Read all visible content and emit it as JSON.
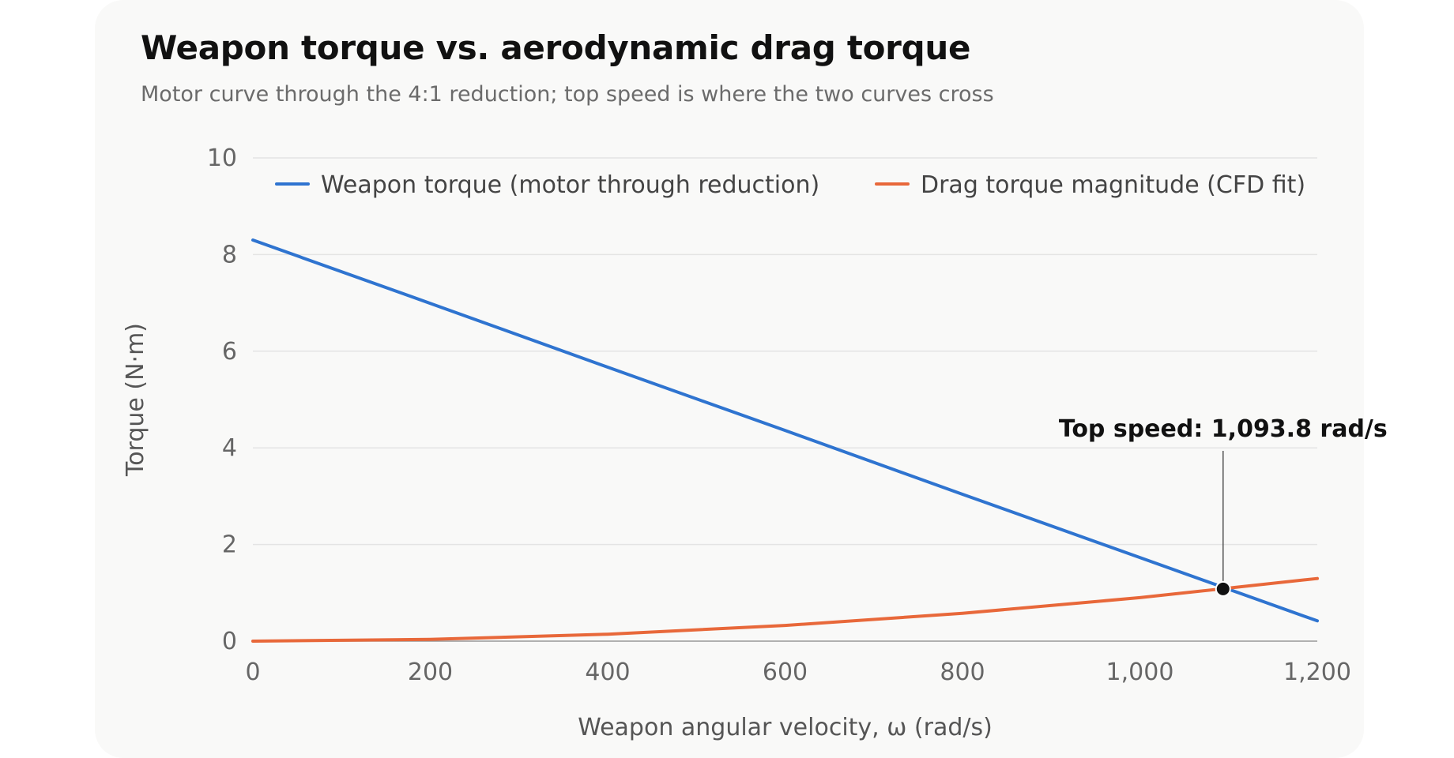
{
  "title": "Weapon torque vs. aerodynamic drag torque",
  "subtitle": "Motor curve through the 4:1 reduction; top speed is where the two curves cross",
  "colors": {
    "card_background": "#f9f9f8",
    "gridline": "#e4e4e4",
    "weapon_series": "#2f74d0",
    "drag_series": "#e8683a",
    "marker": "#111111"
  },
  "chart_data": {
    "type": "line",
    "xlabel": "Weapon angular velocity, ω (rad/s)",
    "ylabel": "Torque (N·m)",
    "xlim": [
      0,
      1200
    ],
    "ylim": [
      0,
      10
    ],
    "xticks": [
      0,
      200,
      400,
      600,
      800,
      1000,
      1200
    ],
    "xtick_labels": [
      "0",
      "200",
      "400",
      "600",
      "800",
      "1,000",
      "1,200"
    ],
    "yticks": [
      0,
      2,
      4,
      6,
      8,
      10
    ],
    "ytick_labels": [
      "0",
      "2",
      "4",
      "6",
      "8",
      "10"
    ],
    "grid": "horizontal",
    "legend_position": "top",
    "series": [
      {
        "name": "Weapon torque (motor through reduction)",
        "model": "linear",
        "x": [
          0,
          200,
          400,
          600,
          800,
          1000,
          1200
        ],
        "y": [
          8.3,
          6.99,
          5.67,
          4.36,
          3.04,
          1.73,
          0.42
        ]
      },
      {
        "name": "Drag torque magnitude (CFD fit)",
        "model": "quadratic",
        "x": [
          0,
          200,
          400,
          600,
          800,
          1000,
          1200
        ],
        "y": [
          0,
          0.036,
          0.144,
          0.324,
          0.576,
          0.9,
          1.296
        ]
      }
    ],
    "annotations": [
      {
        "label": "Top speed: 1,093.8 rad/s",
        "x": 1093.8,
        "y": 1.08
      }
    ]
  }
}
